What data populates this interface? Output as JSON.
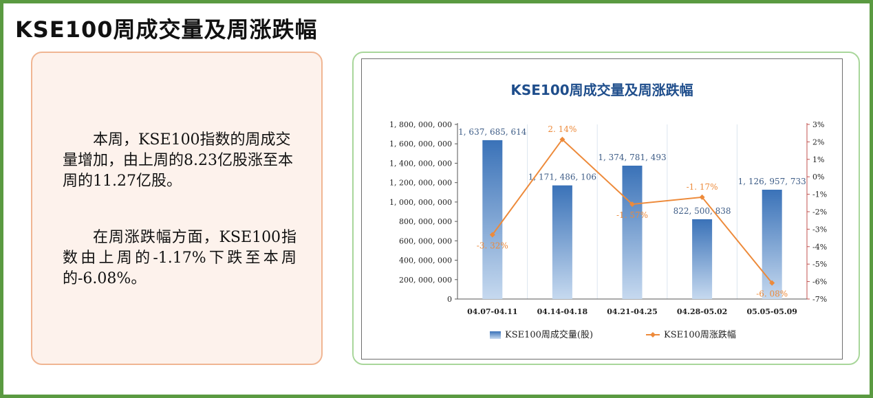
{
  "page": {
    "title": "KSE100周成交量及周涨跌幅",
    "para1": "本周，KSE100指数的周成交量增加，由上周的8.23亿股涨至本周的11.27亿股。",
    "para2": "在周涨跌幅方面，KSE100指数由上周的-1.17%下跌至本周的-6.08%。"
  },
  "colors": {
    "frame": "#5a9a41",
    "bar_top": "#3a72b8",
    "bar_bottom": "#c6d9ef",
    "line": "#ed8a3a",
    "title": "#1f4e8c",
    "right_axis": "#c0504d"
  },
  "chart_data": {
    "type": "bar",
    "title": "KSE100周成交量及周涨跌幅",
    "categories": [
      "04.07-04.11",
      "04.14-04.18",
      "04.21-04.25",
      "04.28-05.02",
      "05.05-05.09"
    ],
    "series": [
      {
        "name": "KSE100周成交量(股)",
        "type": "bar",
        "axis": "left",
        "values": [
          1637685614,
          1171486106,
          1374781493,
          822500838,
          1126957733
        ],
        "labels": [
          "1, 637, 685, 614",
          "1, 171, 486, 106",
          "1, 374, 781, 493",
          "822, 500, 838",
          "1, 126, 957, 733"
        ]
      },
      {
        "name": "KSE100周涨跌幅",
        "type": "line",
        "axis": "right",
        "values": [
          -3.32,
          2.14,
          -1.57,
          -1.17,
          -6.08
        ],
        "labels": [
          "-3. 32%",
          "2. 14%",
          "-1. 57%",
          "-1. 17%",
          "-6. 08%"
        ]
      }
    ],
    "y_left": {
      "ylim": [
        0,
        1800000000
      ],
      "ticks": [
        0,
        200000000,
        400000000,
        600000000,
        800000000,
        1000000000,
        1200000000,
        1400000000,
        1600000000,
        1800000000
      ],
      "tick_labels": [
        "0",
        "200, 000, 000",
        "400, 000, 000",
        "600, 000, 000",
        "800, 000, 000",
        "1, 000, 000, 000",
        "1, 200, 000, 000",
        "1, 400, 000, 000",
        "1, 600, 000, 000",
        "1, 800, 000, 000"
      ]
    },
    "y_right": {
      "ylim": [
        -7,
        3
      ],
      "ticks": [
        -7,
        -6,
        -5,
        -4,
        -3,
        -2,
        -1,
        0,
        1,
        2,
        3
      ],
      "tick_labels": [
        "-7%",
        "-6%",
        "-5%",
        "-4%",
        "-3%",
        "-2%",
        "-1%",
        "0%",
        "1%",
        "2%",
        "3%"
      ]
    },
    "legend": {
      "position": "bottom"
    },
    "grid": "vertical"
  }
}
